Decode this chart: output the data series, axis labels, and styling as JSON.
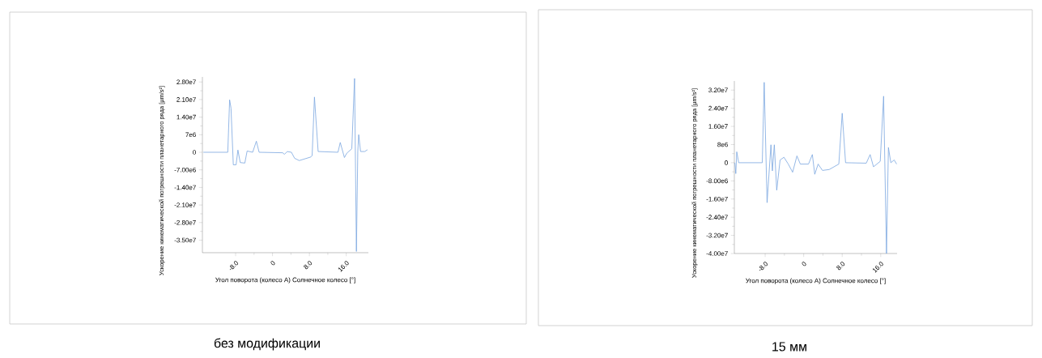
{
  "chart_data": [
    {
      "type": "line",
      "xlabel": "Угол поворота (колесо A) Солнечное колесо [°]",
      "ylabel": "Ускорение кинематической погрешности планетарного ряда [µm/s²]",
      "color": "#7aa6e0",
      "x": [
        -15.0,
        -9.7,
        -9.3,
        -9.0,
        -8.5,
        -7.9,
        -7.5,
        -7.0,
        -6.0,
        -5.5,
        -4.3,
        -3.5,
        -2.9,
        2.2,
        2.6,
        3.2,
        4.1,
        4.8,
        5.8,
        8.3,
        8.6,
        9.1,
        9.9,
        14.2,
        14.7,
        15.6,
        16.1,
        17.2,
        17.8,
        18.2,
        18.5,
        18.7,
        19.1,
        20.0,
        20.6
      ],
      "values": [
        0,
        0,
        20900000.0,
        17600000.0,
        -5000000.0,
        -5000000.0,
        900000.0,
        -4100000.0,
        -4300000.0,
        500000.0,
        0,
        4400000.0,
        0,
        -200000.0,
        -800000.0,
        300000.0,
        0,
        -2400000.0,
        -3300000.0,
        -1900000.0,
        -1300000.0,
        22000000.0,
        300000.0,
        0,
        3900000.0,
        -2100000.0,
        -400000.0,
        1400000.0,
        29400000.0,
        -39500000.0,
        300000.0,
        7000000.0,
        300000.0,
        300000.0,
        1000000.0
      ],
      "xlim": [
        -15.2,
        20.8
      ],
      "ylim": [
        -40000000.0,
        30000000.0
      ],
      "xticks": [
        {
          "value": -8,
          "label": "-8.0"
        },
        0,
        {
          "value": 8,
          "label": "8.0"
        },
        {
          "value": 16,
          "label": "16.0"
        }
      ],
      "yticks": [
        {
          "value": 28000000.0,
          "label": "2.80e7"
        },
        {
          "value": 21000000.0,
          "label": "2.10e7"
        },
        {
          "value": 14000000.0,
          "label": "1.40e7"
        },
        {
          "value": 7000000.0,
          "label": "7e6"
        },
        0,
        {
          "value": -7000000.0,
          "label": "-7.00e6"
        },
        {
          "value": -14000000.0,
          "label": "-1.40e7"
        },
        {
          "value": -21000000.0,
          "label": "-2.10e7"
        },
        {
          "value": -28000000.0,
          "label": "-2.80e7"
        },
        {
          "value": -35000000.0,
          "label": "-3.50e7"
        }
      ],
      "annotations": [
        "без модификации"
      ]
    },
    {
      "type": "line",
      "xlabel": "Угол поворота (колесо A) Солнечное колесо [°]",
      "ylabel": "Ускорение кинематической погрешности планетарного ряда [µm/s²]",
      "color": "#7aa6e0",
      "x": [
        -14.3,
        -14.1,
        -13.9,
        -13.5,
        -8.6,
        -8.2,
        -7.6,
        -6.8,
        -6.5,
        -6.1,
        -5.6,
        -4.9,
        -4.1,
        -3.2,
        -2.3,
        -1.4,
        -0.7,
        1.0,
        1.8,
        2.3,
        3.0,
        3.9,
        5.3,
        7.3,
        8.0,
        8.7,
        13.0,
        13.8,
        14.5,
        15.9,
        16.6,
        17.2,
        17.6,
        18.1,
        18.8,
        19.3
      ],
      "values": [
        0,
        -4800000.0,
        4800000.0,
        0,
        0,
        35400000.0,
        -17600000.0,
        7900000.0,
        -3600000.0,
        7900000.0,
        -12100000.0,
        1200000.0,
        2400000.0,
        -600000.0,
        -4200000.0,
        3000000.0,
        -600000.0,
        -600000.0,
        3600000.0,
        -5100000.0,
        -600000.0,
        -3400000.0,
        -3000000.0,
        -600000.0,
        21800000.0,
        0,
        -200000.0,
        3600000.0,
        -1800000.0,
        600000.0,
        29300000.0,
        -40000000.0,
        6700000.0,
        0,
        1200000.0,
        -600000.0
      ],
      "xlim": [
        -14.4,
        19.4
      ],
      "ylim": [
        -40000000.0,
        36000000.0
      ],
      "xticks": [
        {
          "value": -8,
          "label": "-8.0"
        },
        0,
        {
          "value": 8,
          "label": "8.0"
        },
        {
          "value": 16,
          "label": "16.0"
        }
      ],
      "yticks": [
        {
          "value": 32000000.0,
          "label": "3.20e7"
        },
        {
          "value": 24000000.0,
          "label": "2.40e7"
        },
        {
          "value": 16000000.0,
          "label": "1.60e7"
        },
        {
          "value": 8000000.0,
          "label": "8e6"
        },
        0,
        {
          "value": -8000000.0,
          "label": "-8.00e6"
        },
        {
          "value": -16000000.0,
          "label": "-1.60e7"
        },
        {
          "value": -24000000.0,
          "label": "-2.40e7"
        },
        {
          "value": -32000000.0,
          "label": "-3.20e7"
        },
        {
          "value": -40000000.0,
          "label": "-4.00e7"
        }
      ],
      "annotations": [
        "15 мм"
      ]
    }
  ]
}
